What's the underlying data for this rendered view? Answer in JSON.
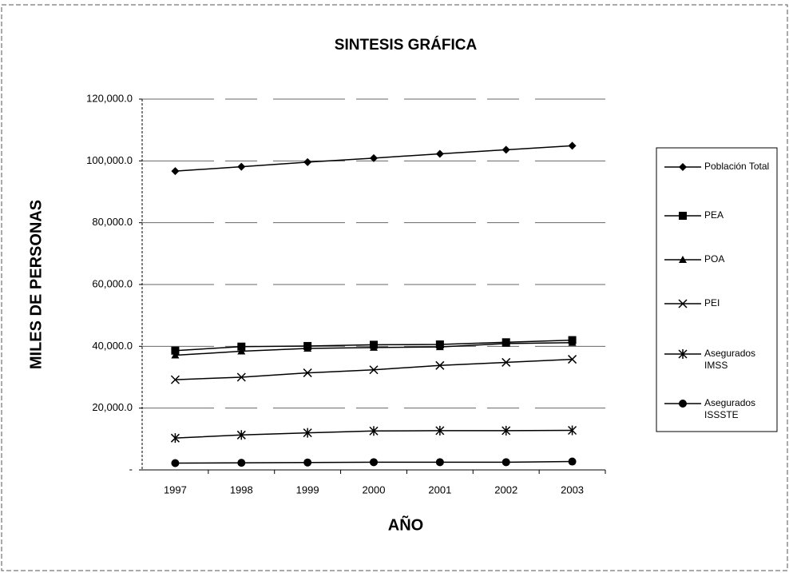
{
  "chart_data": {
    "type": "line",
    "title": "SINTESIS GRÁFICA",
    "x_label": "AÑO",
    "y_label": "MILES DE PERSONAS",
    "categories": [
      "1997",
      "1998",
      "1999",
      "2000",
      "2001",
      "2002",
      "2003"
    ],
    "series": [
      {
        "name": "Población Total",
        "color": "#000000",
        "marker": "diamond",
        "values": [
          96700,
          98100,
          99600,
          100900,
          102300,
          103600,
          104900
        ]
      },
      {
        "name": "PEA",
        "color": "#000000",
        "marker": "square",
        "values": [
          38600,
          39900,
          40100,
          40500,
          40600,
          41300,
          42000
        ]
      },
      {
        "name": "POA",
        "color": "#000000",
        "marker": "triangle",
        "values": [
          37100,
          38400,
          39300,
          39600,
          39800,
          40900,
          41200
        ]
      },
      {
        "name": "PEI",
        "color": "#000000",
        "marker": "x",
        "values": [
          29200,
          30000,
          31400,
          32400,
          33800,
          34800,
          35800
        ]
      },
      {
        "name": "Asegurados IMSS",
        "color": "#000000",
        "marker": "asterisk",
        "values": [
          10300,
          11300,
          12000,
          12600,
          12700,
          12700,
          12800
        ]
      },
      {
        "name": "Asegurados ISSSTE",
        "color": "#000000",
        "marker": "circle",
        "values": [
          2200,
          2300,
          2400,
          2500,
          2500,
          2500,
          2700
        ]
      }
    ],
    "ylim": [
      0,
      120000
    ],
    "yticks": [
      {
        "value": 0,
        "label": "-"
      },
      {
        "value": 20000,
        "label": "20,000.0"
      },
      {
        "value": 40000,
        "label": "40,000.0"
      },
      {
        "value": 60000,
        "label": "60,000.0"
      },
      {
        "value": 80000,
        "label": "80,000.0"
      },
      {
        "value": 100000,
        "label": "100,000.0"
      },
      {
        "value": 120000,
        "label": "120,000.0"
      }
    ],
    "grid": true,
    "legend": "right"
  }
}
